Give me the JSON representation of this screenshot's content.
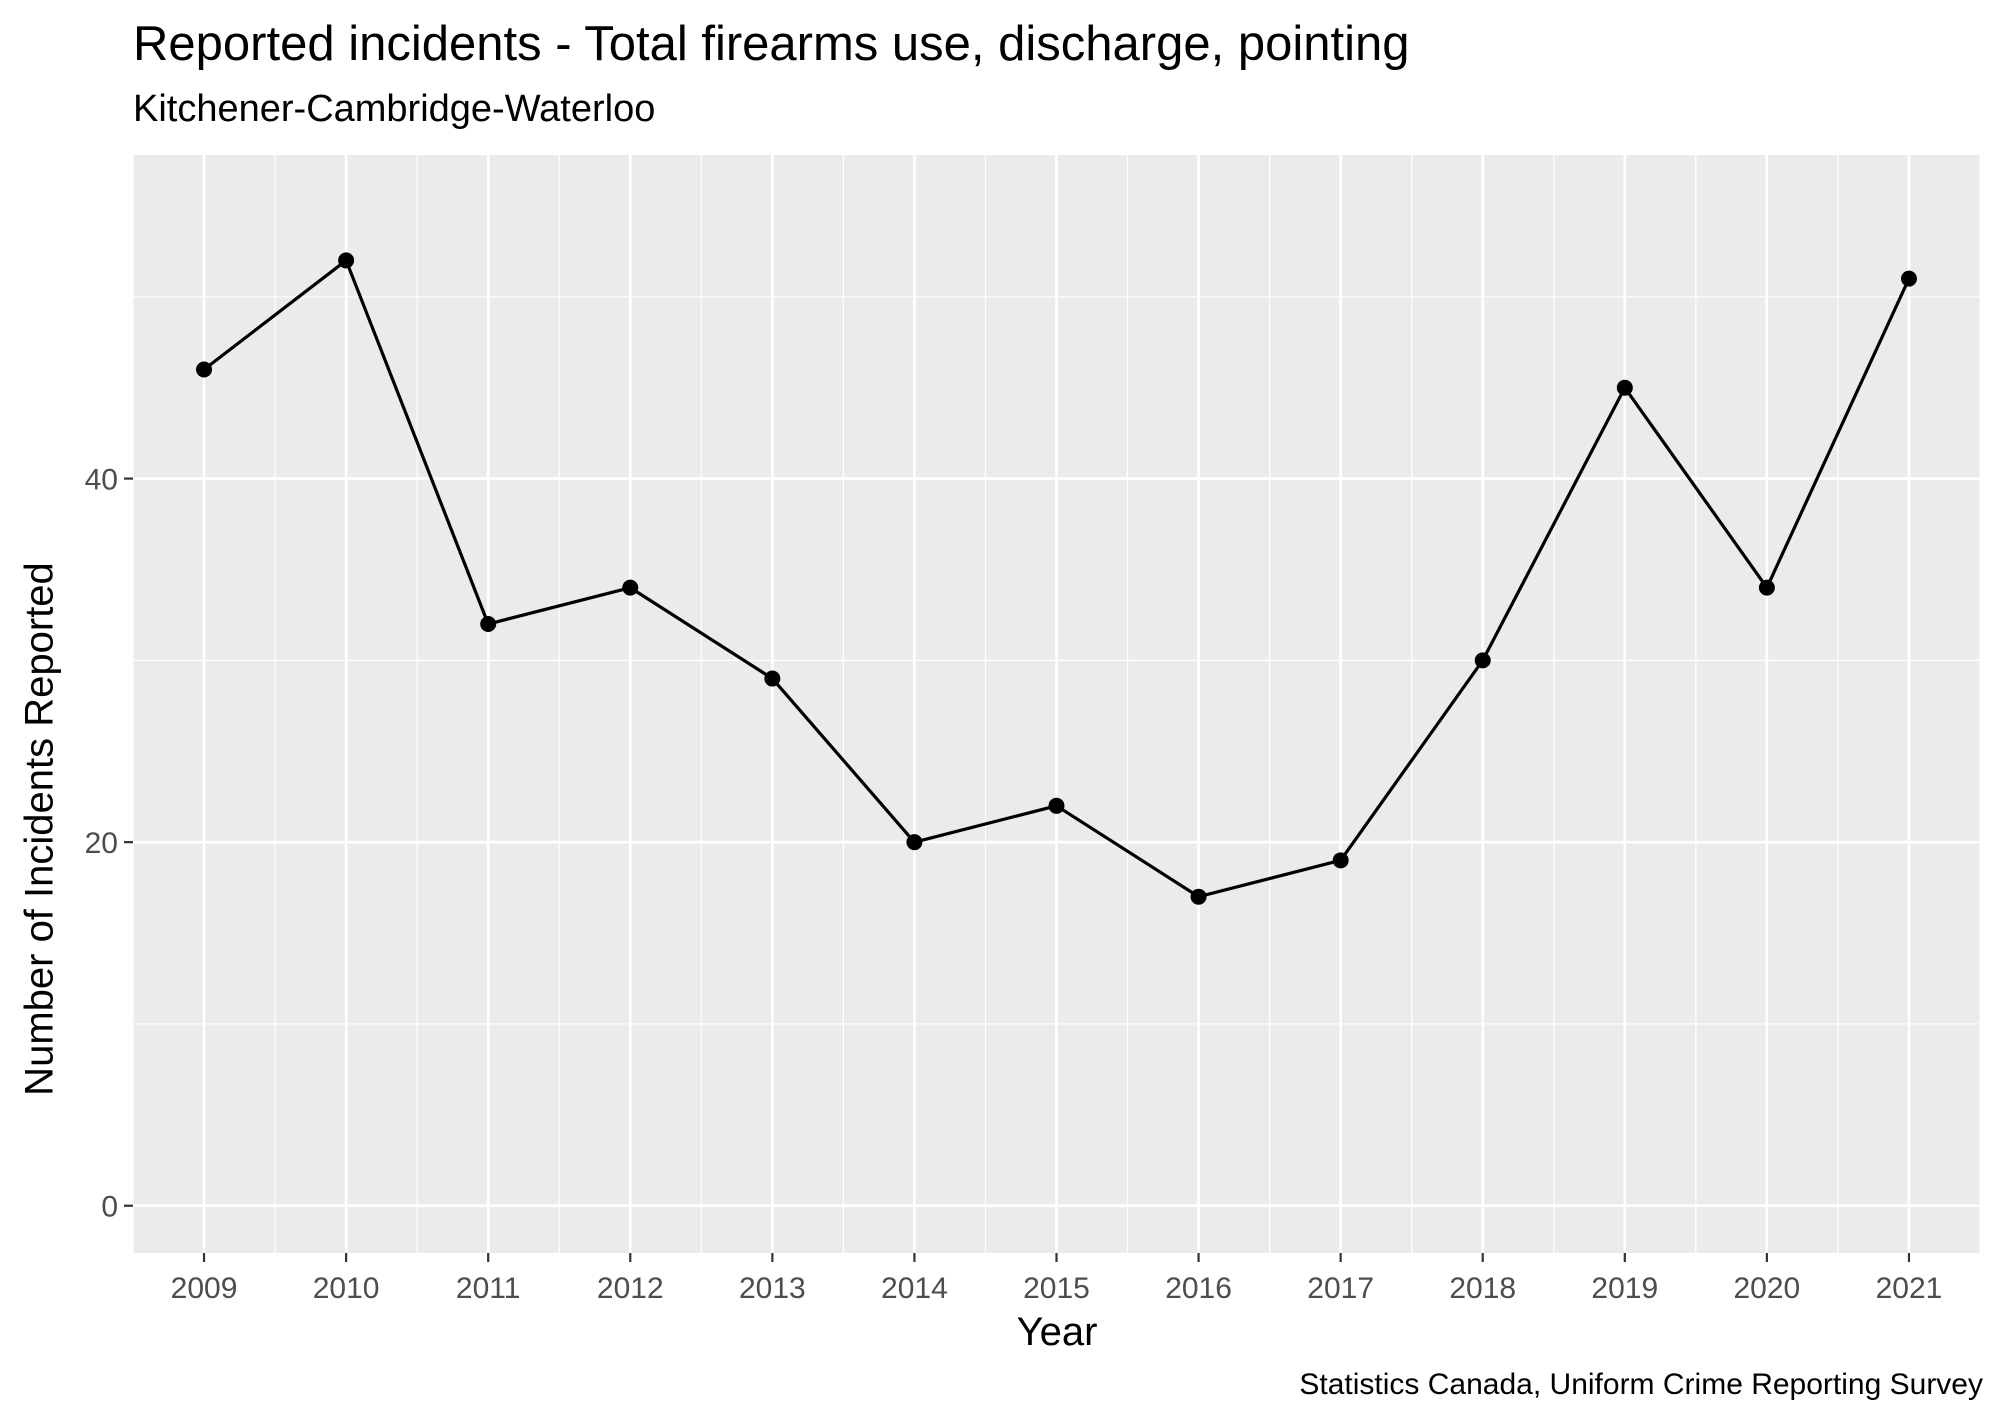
{
  "title": "Reported incidents - Total firearms use, discharge, pointing",
  "subtitle": "Kitchener-Cambridge-Waterloo",
  "caption": "Statistics Canada, Uniform Crime Reporting Survey",
  "colors": {
    "panel": "#ebebeb",
    "grid": "#ffffff",
    "series": "#000000",
    "tick_text": "#4d4d4d",
    "tick_mark": "#333333"
  },
  "chart_data": {
    "type": "line",
    "title": "Reported incidents - Total firearms use, discharge, pointing",
    "subtitle": "Kitchener-Cambridge-Waterloo",
    "xlabel": "Year",
    "ylabel": "Number of Incidents Reported",
    "x": [
      2009,
      2010,
      2011,
      2012,
      2013,
      2014,
      2015,
      2016,
      2017,
      2018,
      2019,
      2020,
      2021
    ],
    "x_ticks": [
      "2009",
      "2010",
      "2011",
      "2012",
      "2013",
      "2014",
      "2015",
      "2016",
      "2017",
      "2018",
      "2019",
      "2020",
      "2021"
    ],
    "series": [
      {
        "values": [
          46,
          52,
          32,
          34,
          29,
          20,
          22,
          17,
          19,
          30,
          45,
          34,
          51
        ]
      }
    ],
    "y_ticks": [
      0,
      20,
      40
    ],
    "y_tick_labels": [
      "0",
      "20",
      "40"
    ],
    "xlim": [
      2008.5,
      2021.5
    ],
    "ylim": [
      -2.6,
      57.8
    ],
    "grid": true,
    "legend": "none"
  }
}
